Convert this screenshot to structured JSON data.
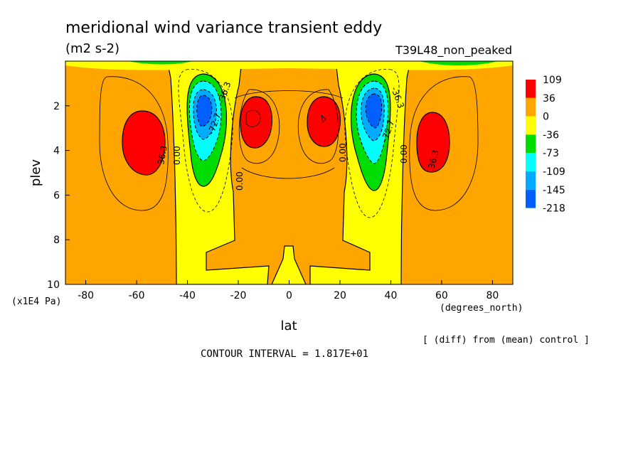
{
  "chart_data": {
    "type": "heatmap",
    "title": "meridional wind variance transient eddy",
    "units": "(m2 s-2)",
    "run_label": "T39L48_non_peaked",
    "xlabel": "lat",
    "x_unit_label": "(degrees_north)",
    "ylabel": "plev",
    "y_unit_label": "(x1E4 Pa)",
    "note": "[ (diff) from (mean) control ]",
    "contour_interval_text": "CONTOUR INTERVAL = 1.817E+01",
    "xlim": [
      -88,
      88
    ],
    "ylim": [
      10,
      0
    ],
    "x_ticks": [
      -80,
      -60,
      -40,
      -20,
      0,
      20,
      40,
      60,
      80
    ],
    "y_ticks": [
      2,
      4,
      6,
      8,
      10
    ],
    "colorbar": {
      "labels": [
        "109",
        "36",
        "0",
        "-36",
        "-73",
        "-109",
        "-145",
        "-218"
      ],
      "colors": [
        "#ff0000",
        "#ffa500",
        "#ffff00",
        "#00dd00",
        "#00ffff",
        "#00aaff",
        "#0060ff"
      ]
    },
    "contour_labels": [
      "36.3",
      "0.00",
      "0.00",
      "-72.7",
      "-36.3",
      "0.00",
      "-36.3",
      "-72.7",
      "0.00",
      "36.3"
    ],
    "features": [
      {
        "name": "max SH subtropics",
        "lat": -57,
        "plev": 3.7,
        "value": 109
      },
      {
        "name": "max NH subtropics",
        "lat": 57,
        "plev": 3.7,
        "value": 109
      },
      {
        "name": "max tropics south",
        "lat": -13,
        "plev": 2.6,
        "value": 109
      },
      {
        "name": "max tropics north",
        "lat": 13,
        "plev": 2.6,
        "value": 109
      },
      {
        "name": "min SH jet",
        "lat": -34,
        "plev": 2.4,
        "value": -218
      },
      {
        "name": "min NH jet",
        "lat": 34,
        "plev": 2.4,
        "value": -218
      }
    ]
  }
}
